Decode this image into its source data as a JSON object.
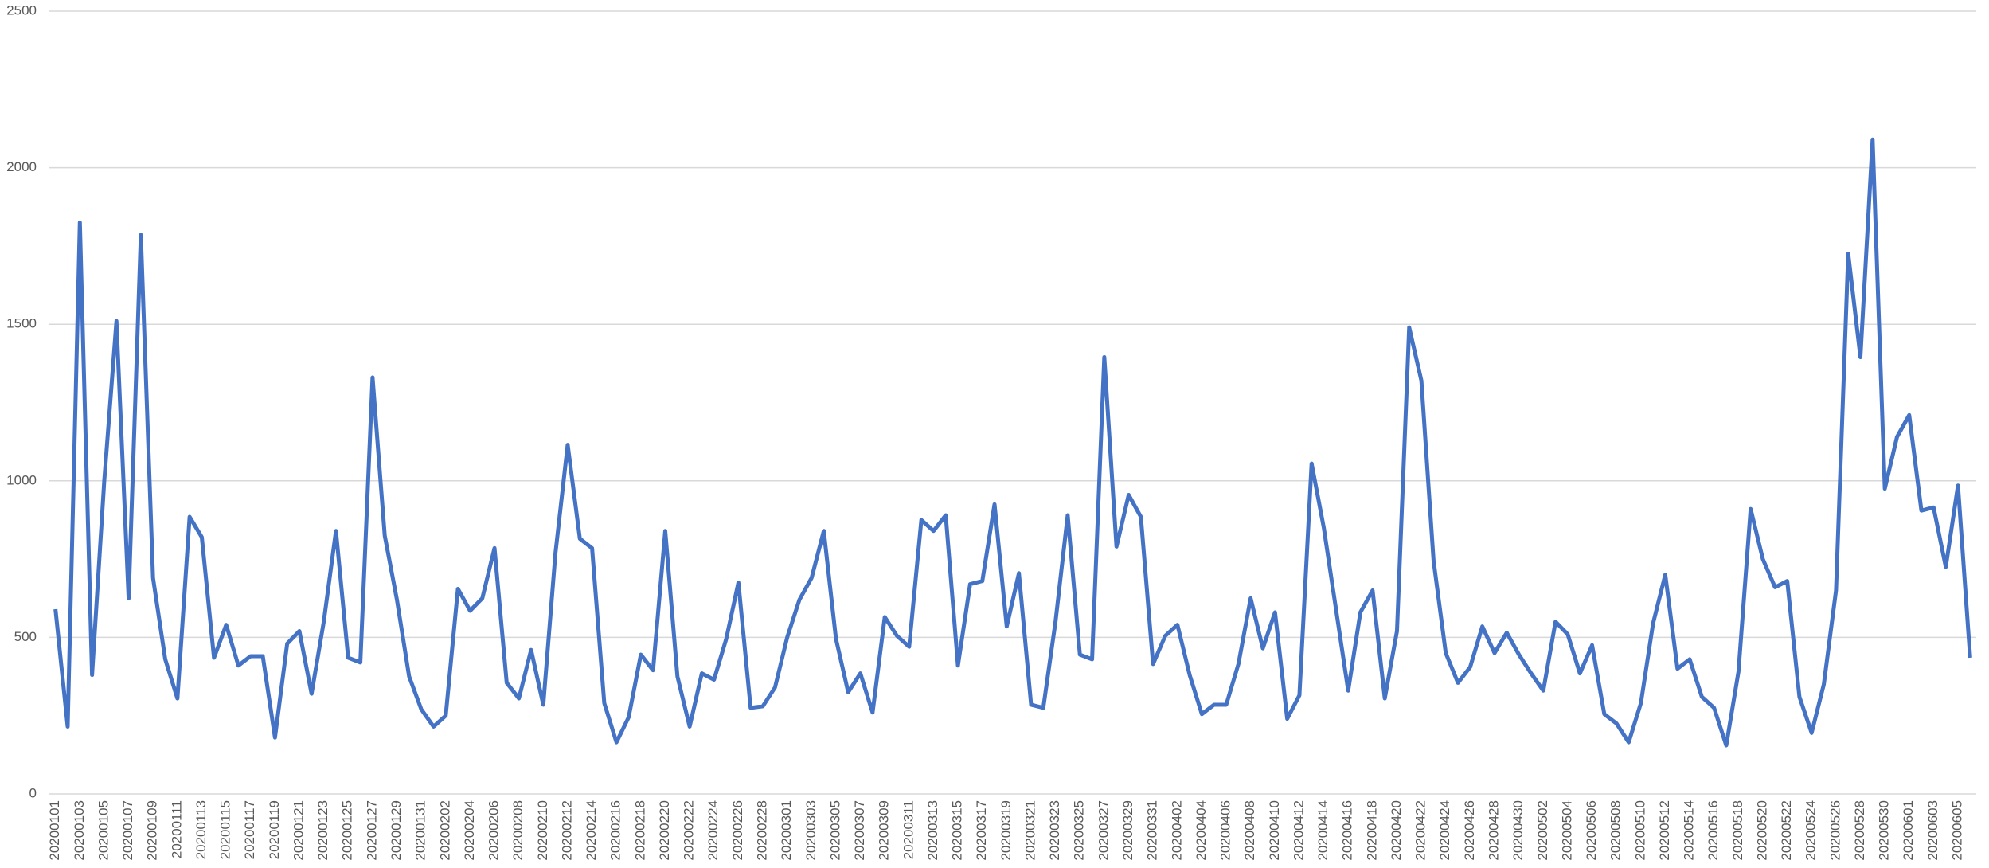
{
  "chart_data": {
    "type": "line",
    "color": "#4472c4",
    "grid": true,
    "ylim": [
      0,
      2500
    ],
    "yticks": [
      0,
      500,
      1000,
      1500,
      2000,
      2500
    ],
    "categories": [
      "20200101",
      null,
      "20200103",
      null,
      "20200105",
      null,
      "20200107",
      null,
      "20200109",
      null,
      "20200111",
      null,
      "20200113",
      null,
      "20200115",
      null,
      "20200117",
      null,
      "20200119",
      null,
      "20200121",
      null,
      "20200123",
      null,
      "20200125",
      null,
      "20200127",
      null,
      "20200129",
      null,
      "20200131",
      null,
      "20200202",
      null,
      "20200204",
      null,
      "20200206",
      null,
      "20200208",
      null,
      "20200210",
      null,
      "20200212",
      null,
      "20200214",
      null,
      "20200216",
      null,
      "20200218",
      null,
      "20200220",
      null,
      "20200222",
      null,
      "20200224",
      null,
      "20200226",
      null,
      "20200228",
      null,
      "20200301",
      null,
      "20200303",
      null,
      "20200305",
      null,
      "20200307",
      null,
      "20200309",
      null,
      "20200311",
      null,
      "20200313",
      null,
      "20200315",
      null,
      "20200317",
      null,
      "20200319",
      null,
      "20200321",
      null,
      "20200323",
      null,
      "20200325",
      null,
      "20200327",
      null,
      "20200329",
      null,
      "20200331",
      null,
      "20200402",
      null,
      "20200404",
      null,
      "20200406",
      null,
      "20200408",
      null,
      "20200410",
      null,
      "20200412",
      null,
      "20200414",
      null,
      "20200416",
      null,
      "20200418",
      null,
      "20200420",
      null,
      "20200422",
      null,
      "20200424",
      null,
      "20200426",
      null,
      "20200428",
      null,
      "20200430",
      null,
      "20200502",
      null,
      "20200504",
      null,
      "20200506",
      null,
      "20200508",
      null,
      "20200510",
      null,
      "20200512",
      null,
      "20200514",
      null,
      "20200516",
      null,
      "20200518",
      null,
      "20200520",
      null,
      "20200522",
      null,
      "20200524",
      null,
      "20200526",
      null,
      "20200528",
      null,
      "20200530",
      null,
      "20200601",
      null,
      "20200603",
      null,
      "20200605",
      null
    ],
    "values": [
      590,
      215,
      1825,
      380,
      1000,
      1510,
      625,
      1785,
      690,
      430,
      305,
      885,
      820,
      435,
      540,
      410,
      440,
      440,
      180,
      480,
      520,
      320,
      550,
      840,
      435,
      420,
      1330,
      825,
      620,
      375,
      270,
      215,
      250,
      655,
      585,
      625,
      785,
      355,
      305,
      460,
      285,
      770,
      1115,
      815,
      785,
      290,
      165,
      245,
      445,
      395,
      840,
      375,
      215,
      385,
      365,
      495,
      675,
      275,
      280,
      340,
      500,
      620,
      690,
      840,
      495,
      325,
      385,
      260,
      565,
      505,
      470,
      875,
      840,
      890,
      410,
      670,
      680,
      925,
      535,
      705,
      285,
      275,
      550,
      890,
      445,
      430,
      1395,
      790,
      955,
      885,
      415,
      505,
      540,
      380,
      255,
      285,
      285,
      415,
      625,
      465,
      580,
      240,
      315,
      1055,
      850,
      590,
      330,
      580,
      650,
      305,
      520,
      1490,
      1320,
      745,
      450,
      355,
      405,
      535,
      450,
      515,
      445,
      385,
      330,
      550,
      510,
      385,
      475,
      255,
      225,
      165,
      290,
      545,
      700,
      400,
      430,
      310,
      275,
      155,
      390,
      910,
      750,
      660,
      680,
      310,
      195,
      350,
      650,
      1725,
      1395,
      2090,
      975,
      1140,
      1210,
      905,
      915,
      725,
      985,
      435
    ]
  }
}
